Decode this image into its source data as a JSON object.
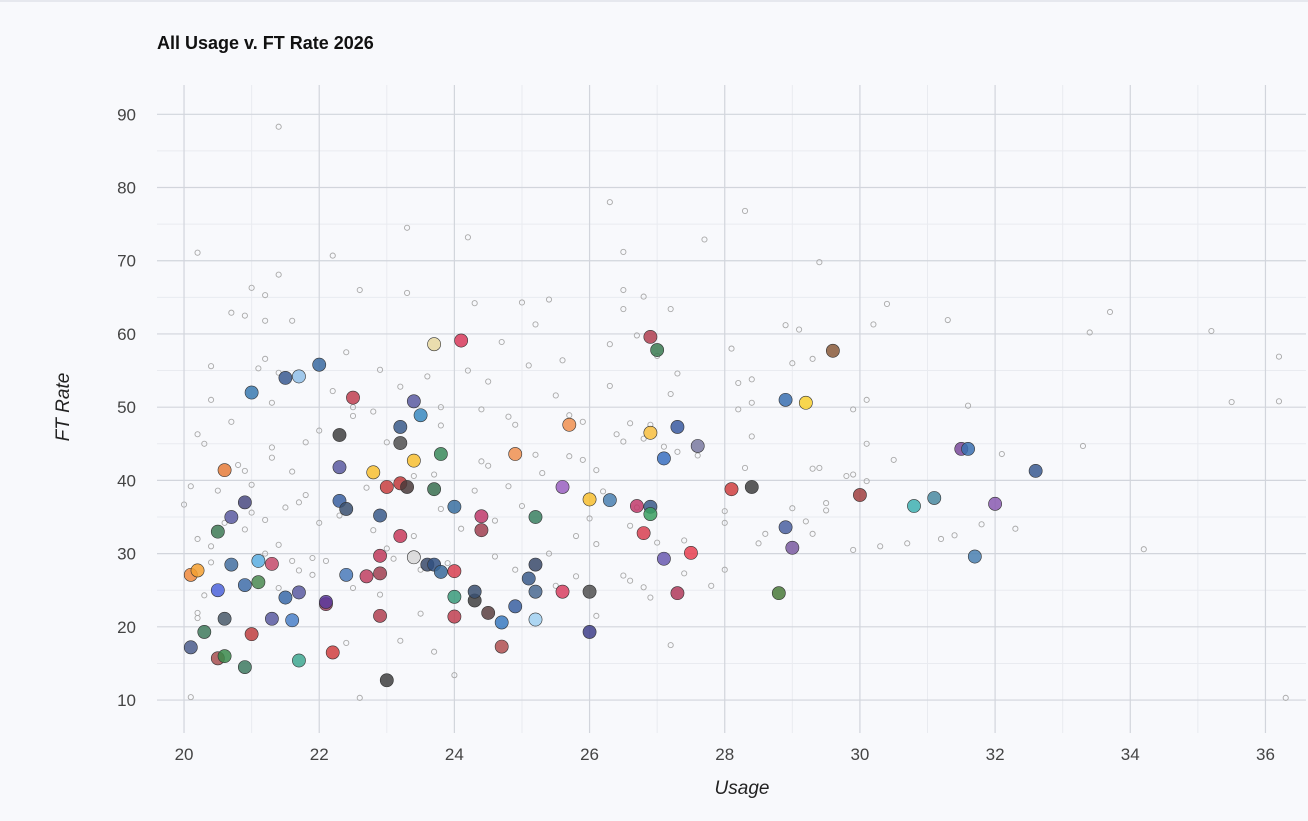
{
  "chart_data": {
    "type": "scatter",
    "title": "All Usage v. FT Rate 2026",
    "xlabel": "Usage",
    "ylabel": "FT Rate",
    "xlim": [
      19.6,
      36.6
    ],
    "ylim": [
      5.5,
      94
    ],
    "x_ticks": [
      20,
      22,
      24,
      26,
      28,
      30,
      32,
      34,
      36
    ],
    "y_ticks": [
      10,
      20,
      30,
      40,
      50,
      60,
      70,
      80,
      90
    ],
    "grid": true,
    "background_points": [
      [
        20.0,
        36.7
      ],
      [
        20.1,
        39.2
      ],
      [
        20.1,
        10.4
      ],
      [
        20.2,
        71.1
      ],
      [
        20.2,
        46.3
      ],
      [
        20.2,
        32.0
      ],
      [
        20.2,
        21.9
      ],
      [
        20.2,
        21.2
      ],
      [
        20.3,
        45.0
      ],
      [
        20.3,
        24.3
      ],
      [
        20.4,
        55.6
      ],
      [
        20.4,
        51.0
      ],
      [
        20.4,
        31.0
      ],
      [
        20.4,
        28.8
      ],
      [
        20.5,
        38.6
      ],
      [
        20.6,
        34.2
      ],
      [
        20.7,
        62.9
      ],
      [
        20.7,
        48.0
      ],
      [
        20.8,
        42.1
      ],
      [
        20.9,
        62.5
      ],
      [
        20.9,
        41.3
      ],
      [
        20.9,
        33.3
      ],
      [
        21.0,
        66.3
      ],
      [
        21.0,
        39.4
      ],
      [
        21.0,
        35.6
      ],
      [
        21.1,
        55.3
      ],
      [
        21.2,
        65.3
      ],
      [
        21.2,
        61.8
      ],
      [
        21.2,
        56.6
      ],
      [
        21.2,
        34.6
      ],
      [
        21.2,
        30.0
      ],
      [
        21.3,
        50.6
      ],
      [
        21.3,
        44.5
      ],
      [
        21.3,
        43.1
      ],
      [
        21.4,
        88.3
      ],
      [
        21.4,
        68.1
      ],
      [
        21.4,
        54.7
      ],
      [
        21.4,
        31.2
      ],
      [
        21.4,
        25.3
      ],
      [
        21.5,
        36.3
      ],
      [
        21.6,
        61.8
      ],
      [
        21.6,
        41.2
      ],
      [
        21.6,
        29.0
      ],
      [
        21.7,
        37.0
      ],
      [
        21.7,
        27.7
      ],
      [
        21.8,
        45.2
      ],
      [
        21.8,
        38.0
      ],
      [
        21.9,
        29.4
      ],
      [
        21.9,
        27.1
      ],
      [
        22.0,
        46.8
      ],
      [
        22.0,
        34.2
      ],
      [
        22.1,
        29.0
      ],
      [
        22.2,
        70.7
      ],
      [
        22.2,
        52.2
      ],
      [
        22.3,
        35.2
      ],
      [
        22.4,
        57.5
      ],
      [
        22.4,
        17.8
      ],
      [
        22.5,
        50.0
      ],
      [
        22.5,
        48.8
      ],
      [
        22.5,
        25.3
      ],
      [
        22.6,
        66.0
      ],
      [
        22.6,
        10.3
      ],
      [
        22.7,
        39.0
      ],
      [
        22.8,
        49.4
      ],
      [
        22.8,
        33.2
      ],
      [
        22.9,
        55.1
      ],
      [
        22.9,
        24.4
      ],
      [
        23.0,
        45.2
      ],
      [
        23.0,
        30.7
      ],
      [
        23.1,
        29.3
      ],
      [
        23.2,
        52.8
      ],
      [
        23.2,
        18.1
      ],
      [
        23.3,
        74.5
      ],
      [
        23.3,
        65.6
      ],
      [
        23.4,
        40.6
      ],
      [
        23.4,
        32.4
      ],
      [
        23.5,
        27.8
      ],
      [
        23.5,
        21.8
      ],
      [
        23.6,
        54.2
      ],
      [
        23.7,
        40.8
      ],
      [
        23.7,
        16.6
      ],
      [
        23.8,
        50.0
      ],
      [
        23.8,
        47.5
      ],
      [
        23.8,
        36.1
      ],
      [
        23.9,
        28.7
      ],
      [
        24.0,
        13.4
      ],
      [
        24.1,
        33.4
      ],
      [
        24.2,
        73.2
      ],
      [
        24.2,
        55.0
      ],
      [
        24.3,
        64.2
      ],
      [
        24.3,
        38.6
      ],
      [
        24.4,
        49.7
      ],
      [
        24.4,
        42.6
      ],
      [
        24.5,
        53.5
      ],
      [
        24.5,
        42.0
      ],
      [
        24.6,
        34.5
      ],
      [
        24.6,
        29.6
      ],
      [
        24.7,
        58.9
      ],
      [
        24.8,
        48.7
      ],
      [
        24.8,
        39.2
      ],
      [
        24.9,
        47.6
      ],
      [
        24.9,
        27.8
      ],
      [
        25.0,
        64.3
      ],
      [
        25.0,
        36.5
      ],
      [
        25.1,
        55.7
      ],
      [
        25.2,
        61.3
      ],
      [
        25.2,
        43.5
      ],
      [
        25.3,
        41.0
      ],
      [
        25.4,
        64.7
      ],
      [
        25.4,
        30.0
      ],
      [
        25.5,
        51.6
      ],
      [
        25.5,
        25.6
      ],
      [
        25.6,
        56.4
      ],
      [
        25.7,
        48.9
      ],
      [
        25.7,
        43.3
      ],
      [
        25.8,
        32.4
      ],
      [
        25.8,
        26.9
      ],
      [
        25.9,
        48.0
      ],
      [
        25.9,
        42.8
      ],
      [
        26.0,
        34.8
      ],
      [
        26.1,
        41.4
      ],
      [
        26.1,
        31.3
      ],
      [
        26.1,
        21.5
      ],
      [
        26.2,
        38.5
      ],
      [
        26.3,
        78.0
      ],
      [
        26.3,
        58.6
      ],
      [
        26.3,
        52.9
      ],
      [
        26.4,
        46.3
      ],
      [
        26.5,
        71.2
      ],
      [
        26.5,
        66.0
      ],
      [
        26.5,
        63.4
      ],
      [
        26.5,
        45.3
      ],
      [
        26.5,
        27.0
      ],
      [
        26.6,
        47.8
      ],
      [
        26.6,
        33.8
      ],
      [
        26.6,
        26.3
      ],
      [
        26.7,
        59.8
      ],
      [
        26.7,
        36.3
      ],
      [
        26.8,
        65.1
      ],
      [
        26.8,
        45.7
      ],
      [
        26.8,
        25.4
      ],
      [
        26.9,
        24.0
      ],
      [
        26.9,
        47.6
      ],
      [
        27.0,
        57.0
      ],
      [
        27.0,
        31.5
      ],
      [
        27.1,
        44.6
      ],
      [
        27.2,
        63.4
      ],
      [
        27.2,
        51.8
      ],
      [
        27.2,
        17.5
      ],
      [
        27.3,
        43.9
      ],
      [
        27.3,
        54.6
      ],
      [
        27.4,
        31.8
      ],
      [
        27.4,
        27.3
      ],
      [
        27.6,
        43.4
      ],
      [
        27.7,
        72.9
      ],
      [
        27.8,
        25.6
      ],
      [
        28.0,
        35.8
      ],
      [
        28.0,
        34.2
      ],
      [
        28.0,
        27.8
      ],
      [
        28.1,
        58.0
      ],
      [
        28.2,
        53.3
      ],
      [
        28.2,
        49.7
      ],
      [
        28.3,
        76.8
      ],
      [
        28.3,
        41.7
      ],
      [
        28.4,
        53.8
      ],
      [
        28.4,
        50.6
      ],
      [
        28.4,
        46.0
      ],
      [
        28.5,
        31.4
      ],
      [
        28.6,
        32.7
      ],
      [
        28.9,
        61.2
      ],
      [
        29.0,
        56.0
      ],
      [
        29.0,
        36.2
      ],
      [
        29.1,
        60.6
      ],
      [
        29.2,
        34.4
      ],
      [
        29.3,
        56.6
      ],
      [
        29.3,
        41.6
      ],
      [
        29.3,
        32.7
      ],
      [
        29.4,
        41.7
      ],
      [
        29.4,
        69.8
      ],
      [
        29.5,
        36.9
      ],
      [
        29.5,
        35.9
      ],
      [
        29.8,
        40.6
      ],
      [
        29.9,
        49.7
      ],
      [
        29.9,
        40.8
      ],
      [
        29.9,
        30.5
      ],
      [
        30.1,
        51.0
      ],
      [
        30.1,
        45.0
      ],
      [
        30.1,
        39.9
      ],
      [
        30.2,
        61.3
      ],
      [
        30.3,
        31.0
      ],
      [
        30.4,
        64.1
      ],
      [
        30.5,
        42.8
      ],
      [
        30.7,
        31.4
      ],
      [
        31.2,
        32.0
      ],
      [
        31.3,
        61.9
      ],
      [
        31.4,
        32.5
      ],
      [
        31.6,
        50.2
      ],
      [
        31.8,
        34.0
      ],
      [
        32.1,
        43.6
      ],
      [
        32.3,
        33.4
      ],
      [
        33.3,
        44.7
      ],
      [
        33.4,
        60.2
      ],
      [
        33.7,
        63.0
      ],
      [
        34.2,
        30.6
      ],
      [
        35.2,
        60.4
      ],
      [
        35.5,
        50.7
      ],
      [
        36.2,
        56.9
      ],
      [
        36.2,
        50.8
      ],
      [
        36.3,
        10.3
      ]
    ],
    "highlighted_points": [
      [
        20.1,
        17.2,
        "#4b5d8c"
      ],
      [
        20.1,
        27.1,
        "#f08a3c"
      ],
      [
        20.2,
        27.7,
        "#f5a030"
      ],
      [
        20.3,
        19.3,
        "#3f7a5c"
      ],
      [
        20.5,
        25.0,
        "#4c63d9"
      ],
      [
        20.5,
        33.0,
        "#3e7a55"
      ],
      [
        20.5,
        15.7,
        "#a85050"
      ],
      [
        20.6,
        16.0,
        "#3a8a4a"
      ],
      [
        20.6,
        21.1,
        "#4a5a6a"
      ],
      [
        20.6,
        41.4,
        "#e67c3a"
      ],
      [
        20.7,
        28.5,
        "#4470a0"
      ],
      [
        20.7,
        35.0,
        "#5a5aa0"
      ],
      [
        20.9,
        25.7,
        "#3f6da8"
      ],
      [
        20.9,
        14.5,
        "#3e7a60"
      ],
      [
        20.9,
        37.0,
        "#4a4a80"
      ],
      [
        21.0,
        19.0,
        "#c04040"
      ],
      [
        21.0,
        52.0,
        "#3a7ab0"
      ],
      [
        21.1,
        29.0,
        "#5aaee0"
      ],
      [
        21.1,
        26.1,
        "#4a8a50"
      ],
      [
        21.3,
        21.1,
        "#5a5aa0"
      ],
      [
        21.3,
        28.6,
        "#c44a6a"
      ],
      [
        21.5,
        54.0,
        "#3a5a90"
      ],
      [
        21.5,
        24.0,
        "#3a6aa8"
      ],
      [
        21.6,
        20.9,
        "#4a80c8"
      ],
      [
        21.7,
        54.2,
        "#90c0e8"
      ],
      [
        21.7,
        15.4,
        "#40a890"
      ],
      [
        21.7,
        24.7,
        "#5a5aa0"
      ],
      [
        22.0,
        55.8,
        "#3a6aa0"
      ],
      [
        22.1,
        23.1,
        "#a04060"
      ],
      [
        22.1,
        23.4,
        "#5a3a9a"
      ],
      [
        22.2,
        16.5,
        "#d04040"
      ],
      [
        22.3,
        46.2,
        "#404040"
      ],
      [
        22.3,
        41.8,
        "#5a5aa0"
      ],
      [
        22.3,
        37.2,
        "#3a60a0"
      ],
      [
        22.4,
        36.1,
        "#3a5070"
      ],
      [
        22.4,
        27.1,
        "#4a7ab8"
      ],
      [
        22.5,
        51.3,
        "#c04050"
      ],
      [
        22.7,
        26.9,
        "#c04060"
      ],
      [
        22.8,
        41.1,
        "#f8c030"
      ],
      [
        22.9,
        35.2,
        "#3a5a8a"
      ],
      [
        22.9,
        29.7,
        "#c03a5a"
      ],
      [
        22.9,
        27.3,
        "#a04050"
      ],
      [
        22.9,
        21.5,
        "#b04050"
      ],
      [
        23.0,
        12.7,
        "#404040"
      ],
      [
        23.0,
        39.1,
        "#c84040"
      ],
      [
        23.2,
        45.1,
        "#505050"
      ],
      [
        23.2,
        47.3,
        "#3a5a8a"
      ],
      [
        23.2,
        39.6,
        "#c03a3a"
      ],
      [
        23.2,
        32.4,
        "#c83a5a"
      ],
      [
        23.3,
        39.1,
        "#4a3a3a"
      ],
      [
        23.4,
        50.8,
        "#5a5aa0"
      ],
      [
        23.4,
        42.7,
        "#f8c030"
      ],
      [
        23.4,
        29.5,
        "#d8d8d8"
      ],
      [
        23.5,
        48.9,
        "#3a8ac0"
      ],
      [
        23.6,
        28.5,
        "#3a4a6a"
      ],
      [
        23.7,
        58.6,
        "#e8d8a0"
      ],
      [
        23.7,
        38.8,
        "#3a7050"
      ],
      [
        23.7,
        28.5,
        "#305080"
      ],
      [
        23.8,
        43.6,
        "#3a8a5a"
      ],
      [
        23.8,
        27.5,
        "#3a6a9a"
      ],
      [
        24.0,
        36.4,
        "#3a70a0"
      ],
      [
        24.0,
        27.6,
        "#d84050"
      ],
      [
        24.0,
        24.1,
        "#3a9a7a"
      ],
      [
        24.0,
        21.4,
        "#c04050"
      ],
      [
        24.1,
        59.1,
        "#d83a5a"
      ],
      [
        24.3,
        23.6,
        "#404040"
      ],
      [
        24.3,
        24.8,
        "#3a5070"
      ],
      [
        24.4,
        33.2,
        "#a04050"
      ],
      [
        24.4,
        35.1,
        "#c03a6a"
      ],
      [
        24.5,
        21.9,
        "#5a4040"
      ],
      [
        24.7,
        17.3,
        "#b05050"
      ],
      [
        24.7,
        20.6,
        "#3a7ac0"
      ],
      [
        24.9,
        43.6,
        "#f09050"
      ],
      [
        24.9,
        22.8,
        "#3a60a0"
      ],
      [
        25.1,
        26.6,
        "#3a5a8a"
      ],
      [
        25.2,
        35.0,
        "#3a8060"
      ],
      [
        25.2,
        28.5,
        "#3a4a6a"
      ],
      [
        25.2,
        24.8,
        "#4a6a90"
      ],
      [
        25.2,
        21.0,
        "#a0d0f0"
      ],
      [
        25.6,
        39.1,
        "#9a60c0"
      ],
      [
        25.6,
        24.8,
        "#d84060"
      ],
      [
        25.7,
        47.6,
        "#f09050"
      ],
      [
        26.0,
        37.4,
        "#f8c030"
      ],
      [
        26.0,
        24.8,
        "#505050"
      ],
      [
        26.0,
        19.3,
        "#40408a"
      ],
      [
        26.3,
        37.3,
        "#4a80b0"
      ],
      [
        26.7,
        36.5,
        "#c03a6a"
      ],
      [
        26.8,
        32.8,
        "#d84050"
      ],
      [
        26.9,
        59.6,
        "#b04050"
      ],
      [
        26.9,
        46.5,
        "#f8c040"
      ],
      [
        26.9,
        36.4,
        "#3a5a8a"
      ],
      [
        26.9,
        35.4,
        "#3aa060"
      ],
      [
        27.0,
        57.8,
        "#3a7a50"
      ],
      [
        27.1,
        43.0,
        "#3a70c0"
      ],
      [
        27.1,
        29.3,
        "#6a5ab0"
      ],
      [
        27.3,
        47.3,
        "#3a5aa0"
      ],
      [
        27.3,
        24.6,
        "#b03a5a"
      ],
      [
        27.5,
        30.1,
        "#e84050"
      ],
      [
        27.6,
        44.7,
        "#7a7aa0"
      ],
      [
        28.1,
        38.8,
        "#d04040"
      ],
      [
        28.4,
        39.1,
        "#404040"
      ],
      [
        28.8,
        24.6,
        "#4a7a3a"
      ],
      [
        28.9,
        51.0,
        "#3a70b0"
      ],
      [
        28.9,
        33.6,
        "#4a60a0"
      ],
      [
        29.0,
        30.8,
        "#7a5aa0"
      ],
      [
        29.2,
        50.6,
        "#f8d030"
      ],
      [
        29.6,
        57.7,
        "#8a5a3a"
      ],
      [
        30.0,
        38.0,
        "#a04040"
      ],
      [
        30.8,
        36.5,
        "#40b0b0"
      ],
      [
        31.1,
        37.6,
        "#4a8aa0"
      ],
      [
        31.5,
        44.3,
        "#7a4a9a"
      ],
      [
        31.6,
        44.3,
        "#3a70b0"
      ],
      [
        31.7,
        29.6,
        "#4a80b0"
      ],
      [
        32.0,
        36.8,
        "#8a5ab0"
      ],
      [
        32.6,
        41.3,
        "#3a5a90"
      ]
    ]
  }
}
